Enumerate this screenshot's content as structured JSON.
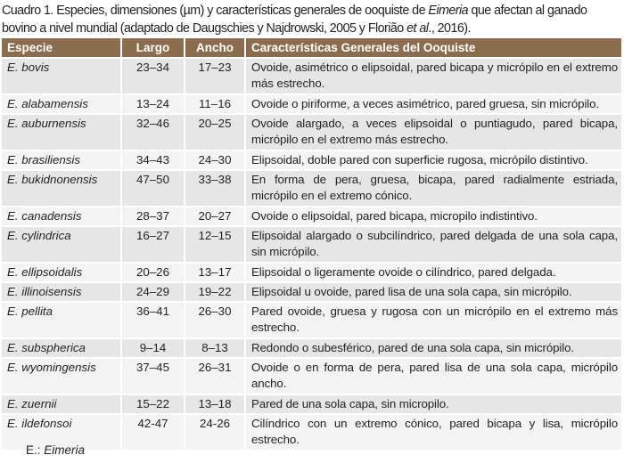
{
  "caption": {
    "part1": "Cuadro 1. Especies, dimensiones (µm) y características generales de ooquiste de ",
    "genus": "Eimeria",
    "part2": " que afectan al ganado bovino a nivel mundial (adaptado de Daugschies y Najdrowski, 2005 y Florião ",
    "etal": "et al",
    "part3": "., 2016)."
  },
  "table": {
    "headers": [
      "Especie",
      "Largo",
      "Ancho",
      "Características Generales del Ooquiste"
    ],
    "rows": [
      {
        "species": "E. bovis",
        "largo": "23–34",
        "ancho": "17–23",
        "desc": "Ovoide, asimétrico o elipsoidal, pared bicapa y micrópilo en el extremo más estrecho."
      },
      {
        "species": "E. alabamensis",
        "largo": "13–24",
        "ancho": "11–16",
        "desc": "Ovoide o piriforme, a veces asimétrico, pared gruesa, sin micrópilo."
      },
      {
        "species": "E. auburnensis",
        "largo": "32–46",
        "ancho": "20–25",
        "desc": "Ovoide alargado, a veces elipsoidal o puntiagudo, pared bicapa, micrópilo en el extremo más estrecho."
      },
      {
        "species": "E. brasiliensis",
        "largo": "34–43",
        "ancho": "24–30",
        "desc": "Elipsoidal, doble pared con superficie rugosa, micrópilo distintivo."
      },
      {
        "species": "E. bukidnonensis",
        "largo": "47–50",
        "ancho": "33–38",
        "desc": "En forma de pera, gruesa, bicapa, pared radialmente estriada, micrópilo en el extremo cónico."
      },
      {
        "species": "E. canadensis",
        "largo": "28–37",
        "ancho": "20–27",
        "desc": "Ovoide o elipsoidal, pared bicapa, micropilo indistintivo."
      },
      {
        "species": "E. cylindrica",
        "largo": "16–27",
        "ancho": "12–15",
        "desc": "Elipsoidal alargado o subcilíndrico, pared delgada de una sola capa, sin micrópilo."
      },
      {
        "species": "E. ellipsoidalis",
        "largo": "20–26",
        "ancho": "13–17",
        "desc": "Elipsoidal o ligeramente ovoide o cilíndrico, pared delgada."
      },
      {
        "species": "E. illinoisensis",
        "largo": "24–29",
        "ancho": "19–22",
        "desc": "Elipsoidal u ovoide, pared lisa de una sola capa, sin micrópilo."
      },
      {
        "species": "E. pellita",
        "largo": "36–41",
        "ancho": "26–30",
        "desc": "Pared ovoide, gruesa y rugosa con un micrópilo en el extremo más estrecho."
      },
      {
        "species": "E. subspherica",
        "largo": "9–14",
        "ancho": "8–13",
        "desc": "Redondo o subesférico, pared de una sola capa, sin micrópilo."
      },
      {
        "species": "E. wyomingensis",
        "largo": "37–45",
        "ancho": "26–31",
        "desc": "Ovoide o en forma de pera, pared lisa de una sola capa, micrópilo ancho."
      },
      {
        "species": "E. zuernii",
        "largo": "15–22",
        "ancho": "13–18",
        "desc": "Pared de una sola capa, sin micropilo."
      },
      {
        "species": "E. ildefonsoi",
        "largo": "42-47",
        "ancho": "24-26",
        "desc": "Cilíndrico con un extremo cónico, pared bicapa y lisa, micrópilo estrecho."
      }
    ]
  },
  "footnote": {
    "prefix": "E.: ",
    "genus": "Eimeria"
  },
  "colors": {
    "header_bg": "#8a6d4f",
    "row_odd": "#e6e6e6",
    "row_even": "#f3f3f3"
  }
}
